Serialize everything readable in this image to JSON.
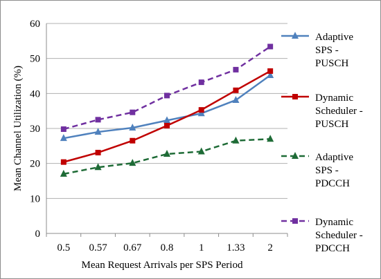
{
  "chart_data": {
    "type": "line",
    "title": "",
    "xlabel": "Mean Request Arrivals per SPS Period",
    "ylabel": "Mean Channel Utilization (%)",
    "categories": [
      "0.5",
      "0.57",
      "0.67",
      "0.8",
      "1",
      "1.33",
      "2"
    ],
    "ylim": [
      0,
      60
    ],
    "yticks": [
      0,
      10,
      20,
      30,
      40,
      50,
      60
    ],
    "grid": true,
    "legend_position": "right",
    "series": [
      {
        "name": "Adaptive SPS - PUSCH",
        "legend_lines": [
          "Adaptive",
          "SPS -",
          "PUSCH"
        ],
        "values": [
          27.2,
          29.0,
          30.2,
          32.3,
          34.3,
          38.1,
          45.2
        ],
        "color": "#4f81bd",
        "dash": "solid",
        "marker": "triangle"
      },
      {
        "name": "Dynamic Scheduler - PUSCH",
        "legend_lines": [
          "Dynamic",
          "Scheduler -",
          "PUSCH"
        ],
        "values": [
          20.4,
          23.1,
          26.5,
          30.8,
          35.3,
          40.9,
          46.4
        ],
        "color": "#c00000",
        "dash": "solid",
        "marker": "square"
      },
      {
        "name": "Adaptive SPS - PDCCH",
        "legend_lines": [
          "Adaptive",
          "SPS  -",
          "PDCCH"
        ],
        "values": [
          17.0,
          18.9,
          20.1,
          22.7,
          23.4,
          26.5,
          27.0
        ],
        "color": "#1e6b36",
        "dash": "dashed",
        "marker": "triangle"
      },
      {
        "name": "Dynamic Scheduler - PDCCH",
        "legend_lines": [
          "Dynamic",
          "Scheduler -",
          "PDCCH"
        ],
        "values": [
          29.8,
          32.5,
          34.6,
          39.4,
          43.2,
          46.8,
          53.4
        ],
        "color": "#7030a0",
        "dash": "dashed",
        "marker": "square"
      }
    ]
  }
}
